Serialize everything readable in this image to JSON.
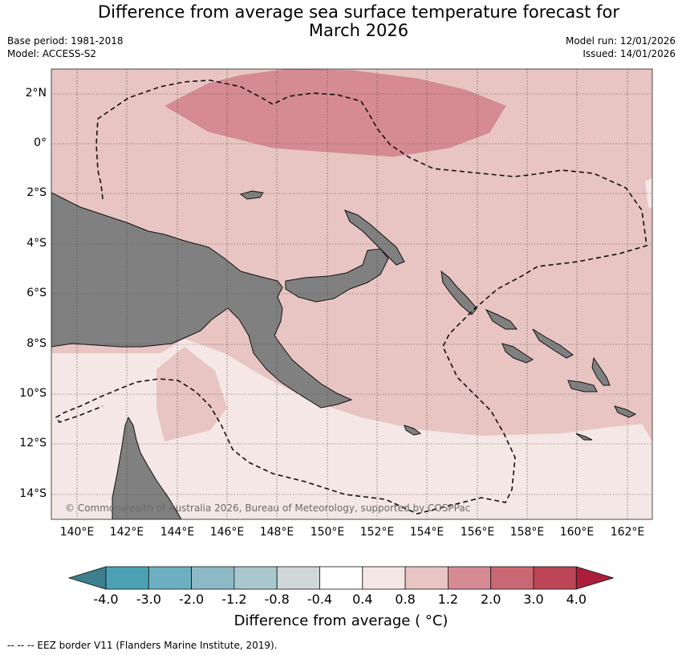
{
  "header": {
    "title_line1": "Difference from average sea surface temperature forecast for",
    "title_line2": "March 2026",
    "base_period": "Base period: 1981-2018",
    "model": "Model: ACCESS-S2",
    "model_run": "Model run: 12/01/2026",
    "issued": "Issued: 14/01/2026"
  },
  "map": {
    "lat_labels": [
      "2°N",
      "0°",
      "2°S",
      "4°S",
      "6°S",
      "8°S",
      "10°S",
      "12°S",
      "14°S"
    ],
    "lon_labels": [
      "140°E",
      "142°E",
      "144°E",
      "146°E",
      "148°E",
      "150°E",
      "152°E",
      "154°E",
      "156°E",
      "158°E",
      "160°E",
      "162°E"
    ],
    "copyright": "© Commonwealth of Australia 2026, Bureau of Meteorology, supported by COSPPac",
    "land_color": "#808080",
    "anomaly_fill_colors": {
      "0.4_to_0.8": "#f5e7e5",
      "0.8_to_1.2": "#e8c5c2",
      "1.2_to_2.0": "#d68b94"
    },
    "grid": "dotted",
    "eez_border": "dashed"
  },
  "colorbar": {
    "ticks": [
      "-4.0",
      "-3.0",
      "-2.0",
      "-1.2",
      "-0.8",
      "-0.4",
      "0.4",
      "0.8",
      "1.2",
      "2.0",
      "3.0",
      "4.0"
    ],
    "colors": [
      "#3d7f8d",
      "#4aa1b4",
      "#6db0c1",
      "#8db9c6",
      "#a9c8ce",
      "#cfd7d8",
      "#ffffff",
      "#f5e7e5",
      "#e8c5c2",
      "#d68b94",
      "#c96872",
      "#bc4556",
      "#ab1f3a"
    ],
    "label": "Difference from average ( °C)"
  },
  "footnote": "--  --  -- EEZ border V11 (Flanders Marine Institute, 2019)."
}
